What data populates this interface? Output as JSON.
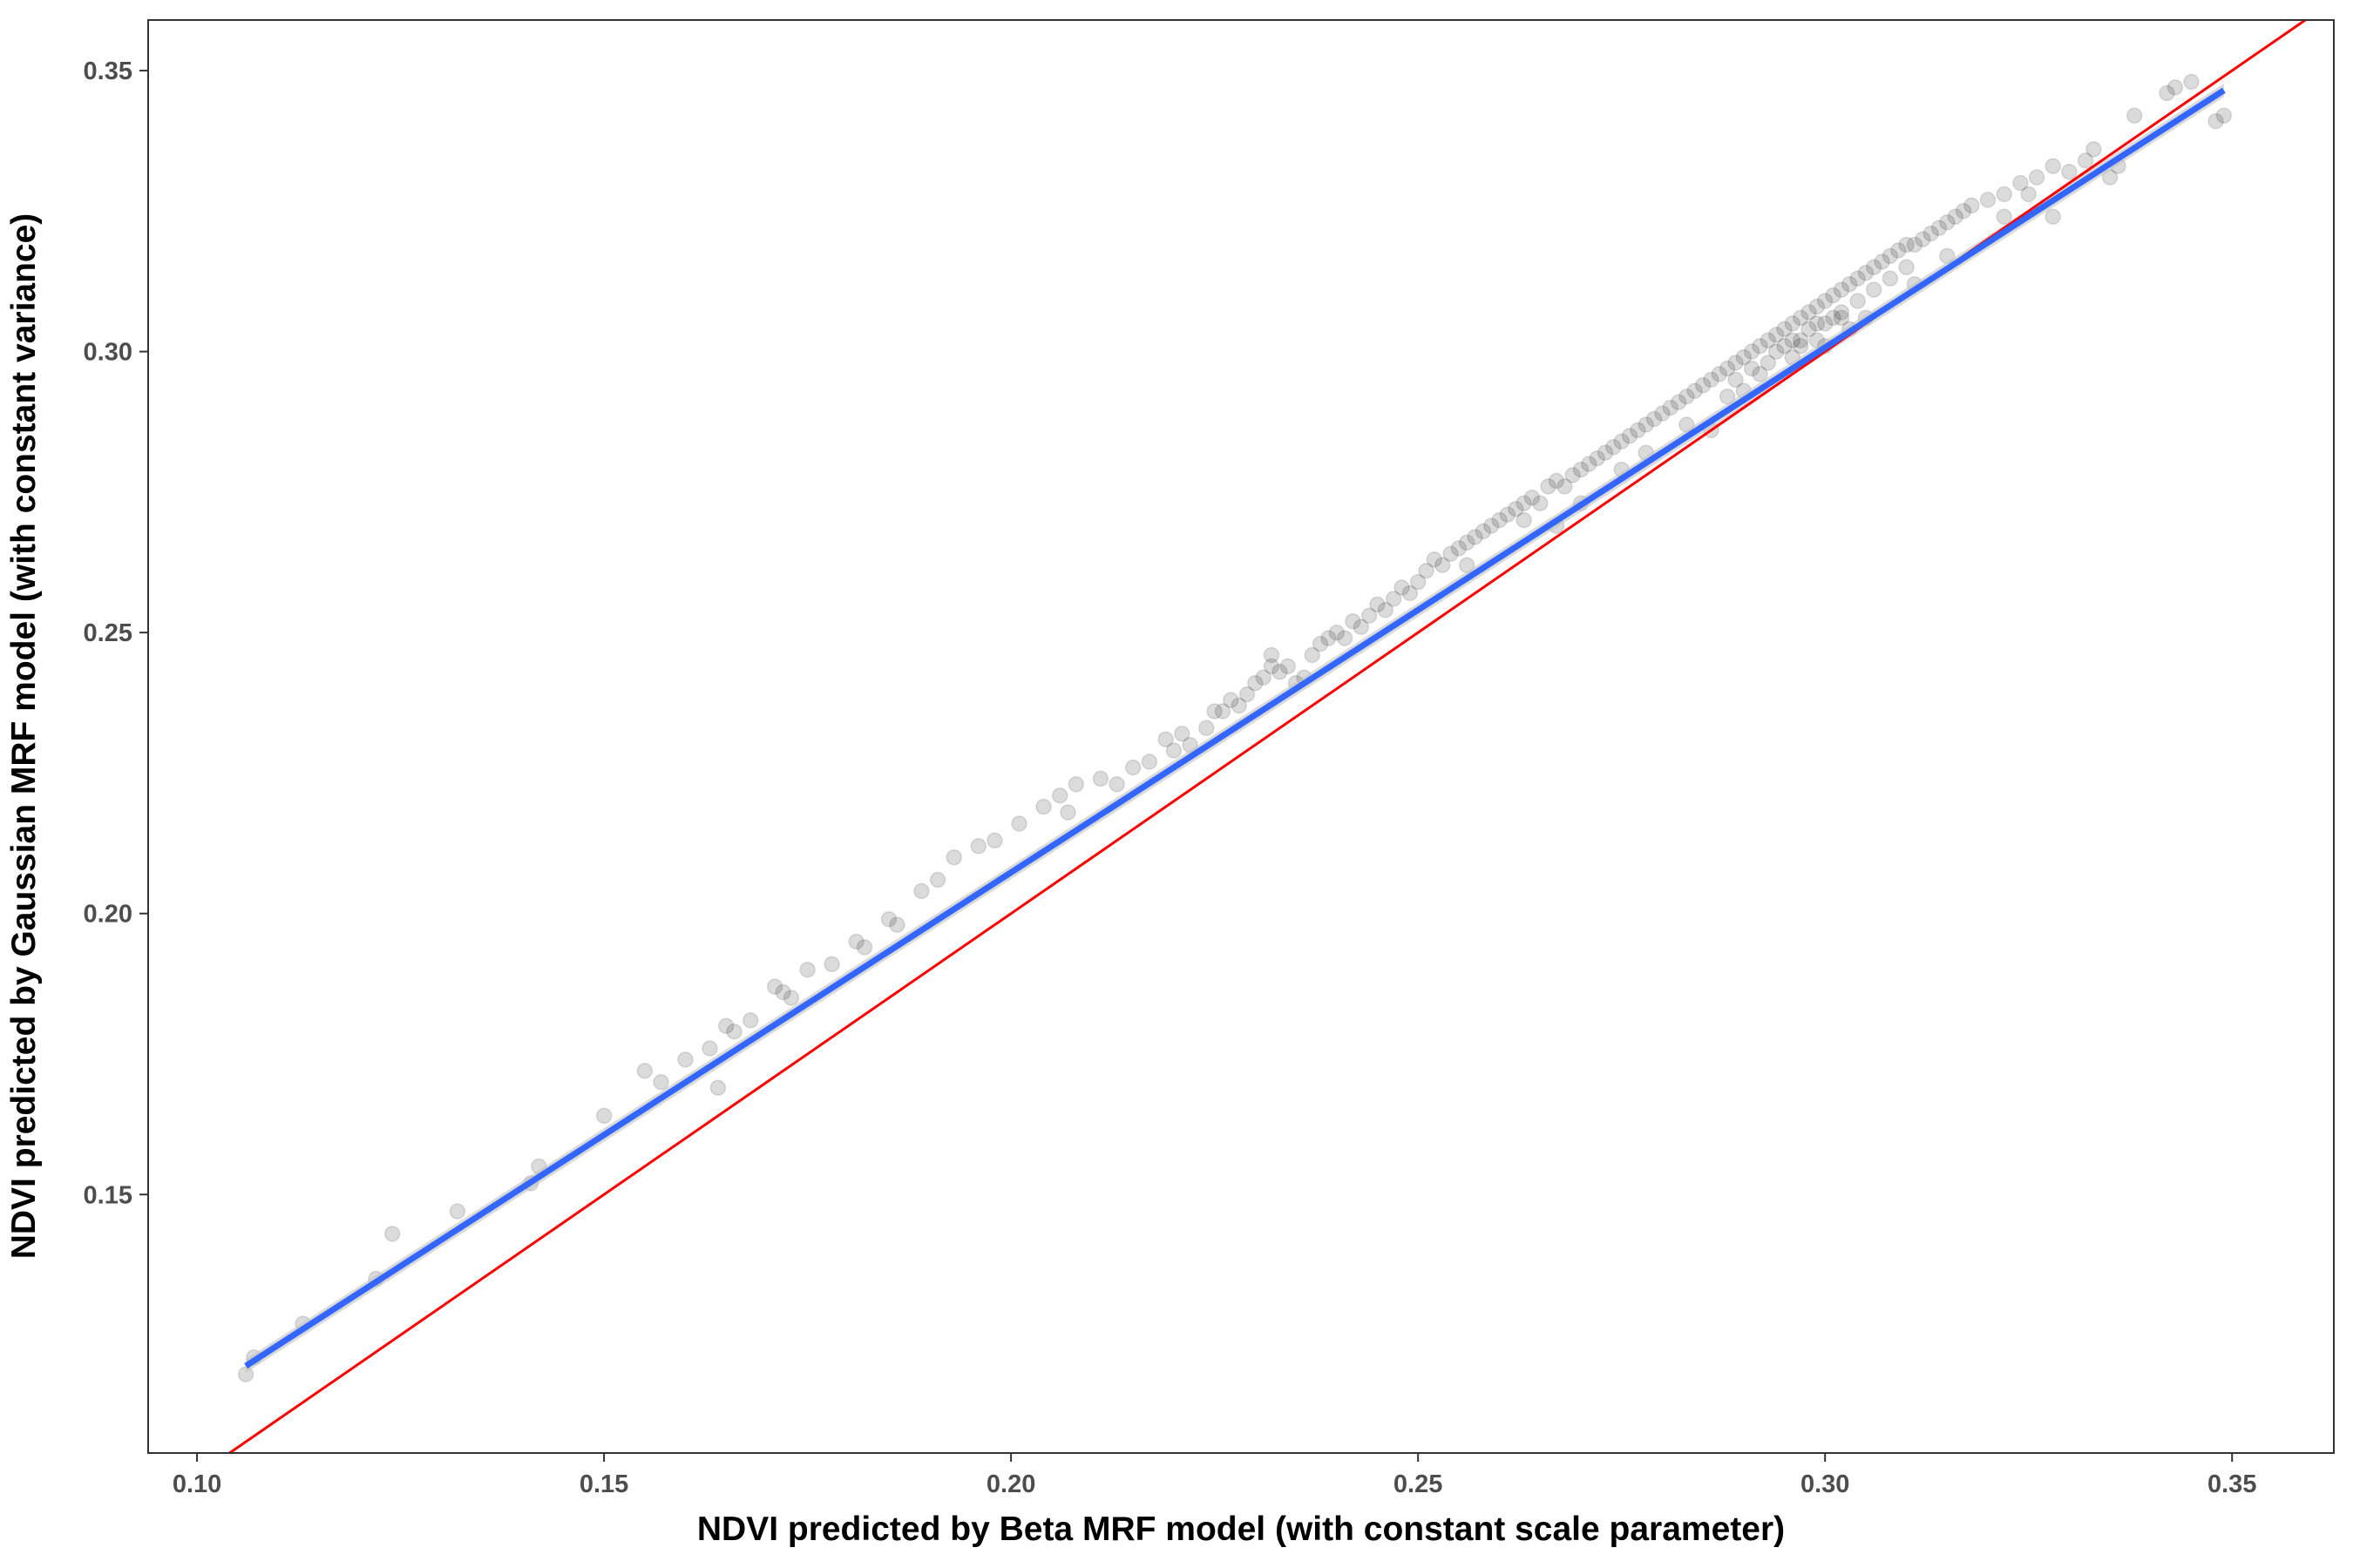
{
  "chart_data": {
    "type": "scatter",
    "title": "",
    "xlabel": "NDVI predicted by Beta MRF model (with constant scale parameter)",
    "ylabel": "NDVI predicted by Gaussian MRF model (with constant variance)",
    "xlim": [
      0.094,
      0.3625
    ],
    "ylim": [
      0.104,
      0.359
    ],
    "x_ticks": [
      0.1,
      0.15,
      0.2,
      0.25,
      0.3,
      0.35
    ],
    "x_tick_labels": [
      "0.10",
      "0.15",
      "0.20",
      "0.25",
      "0.30",
      "0.35"
    ],
    "y_ticks": [
      0.15,
      0.2,
      0.25,
      0.3,
      0.35
    ],
    "y_tick_labels": [
      "0.15",
      "0.20",
      "0.25",
      "0.30",
      "0.35"
    ],
    "grid": false,
    "legend": "none",
    "colors": {
      "points": "#000000",
      "smooth_line": "#3366ff",
      "smooth_band": "#bfbfbf",
      "identity_line": "#ff0000",
      "panel_border": "#333333"
    },
    "series": [
      {
        "type": "scatter",
        "values": [
          [
            0.106,
            0.118
          ],
          [
            0.107,
            0.121
          ],
          [
            0.113,
            0.127
          ],
          [
            0.122,
            0.135
          ],
          [
            0.124,
            0.143
          ],
          [
            0.132,
            0.147
          ],
          [
            0.141,
            0.152
          ],
          [
            0.142,
            0.155
          ],
          [
            0.15,
            0.164
          ],
          [
            0.155,
            0.172
          ],
          [
            0.157,
            0.17
          ],
          [
            0.16,
            0.174
          ],
          [
            0.163,
            0.176
          ],
          [
            0.164,
            0.169
          ],
          [
            0.165,
            0.18
          ],
          [
            0.166,
            0.179
          ],
          [
            0.168,
            0.181
          ],
          [
            0.171,
            0.187
          ],
          [
            0.172,
            0.186
          ],
          [
            0.173,
            0.185
          ],
          [
            0.175,
            0.19
          ],
          [
            0.178,
            0.191
          ],
          [
            0.181,
            0.195
          ],
          [
            0.182,
            0.194
          ],
          [
            0.185,
            0.199
          ],
          [
            0.186,
            0.198
          ],
          [
            0.189,
            0.204
          ],
          [
            0.191,
            0.206
          ],
          [
            0.193,
            0.21
          ],
          [
            0.196,
            0.212
          ],
          [
            0.198,
            0.213
          ],
          [
            0.201,
            0.216
          ],
          [
            0.204,
            0.219
          ],
          [
            0.206,
            0.221
          ],
          [
            0.207,
            0.218
          ],
          [
            0.208,
            0.223
          ],
          [
            0.211,
            0.224
          ],
          [
            0.213,
            0.223
          ],
          [
            0.215,
            0.226
          ],
          [
            0.217,
            0.227
          ],
          [
            0.219,
            0.231
          ],
          [
            0.22,
            0.229
          ],
          [
            0.221,
            0.232
          ],
          [
            0.222,
            0.23
          ],
          [
            0.224,
            0.233
          ],
          [
            0.225,
            0.236
          ],
          [
            0.226,
            0.236
          ],
          [
            0.227,
            0.238
          ],
          [
            0.228,
            0.237
          ],
          [
            0.229,
            0.239
          ],
          [
            0.23,
            0.241
          ],
          [
            0.231,
            0.242
          ],
          [
            0.232,
            0.244
          ],
          [
            0.232,
            0.246
          ],
          [
            0.233,
            0.243
          ],
          [
            0.234,
            0.244
          ],
          [
            0.235,
            0.241
          ],
          [
            0.236,
            0.242
          ],
          [
            0.237,
            0.246
          ],
          [
            0.238,
            0.248
          ],
          [
            0.239,
            0.249
          ],
          [
            0.24,
            0.25
          ],
          [
            0.241,
            0.249
          ],
          [
            0.242,
            0.252
          ],
          [
            0.243,
            0.251
          ],
          [
            0.244,
            0.253
          ],
          [
            0.245,
            0.255
          ],
          [
            0.246,
            0.254
          ],
          [
            0.247,
            0.256
          ],
          [
            0.248,
            0.258
          ],
          [
            0.249,
            0.257
          ],
          [
            0.25,
            0.259
          ],
          [
            0.251,
            0.261
          ],
          [
            0.252,
            0.263
          ],
          [
            0.253,
            0.262
          ],
          [
            0.254,
            0.264
          ],
          [
            0.255,
            0.265
          ],
          [
            0.256,
            0.266
          ],
          [
            0.257,
            0.267
          ],
          [
            0.258,
            0.268
          ],
          [
            0.259,
            0.269
          ],
          [
            0.26,
            0.27
          ],
          [
            0.261,
            0.271
          ],
          [
            0.262,
            0.272
          ],
          [
            0.263,
            0.273
          ],
          [
            0.264,
            0.274
          ],
          [
            0.265,
            0.273
          ],
          [
            0.266,
            0.276
          ],
          [
            0.267,
            0.277
          ],
          [
            0.268,
            0.276
          ],
          [
            0.269,
            0.278
          ],
          [
            0.27,
            0.279
          ],
          [
            0.271,
            0.28
          ],
          [
            0.272,
            0.281
          ],
          [
            0.273,
            0.282
          ],
          [
            0.274,
            0.283
          ],
          [
            0.275,
            0.284
          ],
          [
            0.276,
            0.285
          ],
          [
            0.277,
            0.286
          ],
          [
            0.278,
            0.287
          ],
          [
            0.279,
            0.288
          ],
          [
            0.28,
            0.289
          ],
          [
            0.281,
            0.29
          ],
          [
            0.282,
            0.291
          ],
          [
            0.283,
            0.292
          ],
          [
            0.284,
            0.293
          ],
          [
            0.285,
            0.294
          ],
          [
            0.286,
            0.295
          ],
          [
            0.287,
            0.296
          ],
          [
            0.288,
            0.297
          ],
          [
            0.289,
            0.298
          ],
          [
            0.29,
            0.299
          ],
          [
            0.291,
            0.3
          ],
          [
            0.292,
            0.301
          ],
          [
            0.293,
            0.302
          ],
          [
            0.294,
            0.303
          ],
          [
            0.295,
            0.304
          ],
          [
            0.296,
            0.305
          ],
          [
            0.297,
            0.306
          ],
          [
            0.298,
            0.307
          ],
          [
            0.299,
            0.308
          ],
          [
            0.3,
            0.309
          ],
          [
            0.301,
            0.31
          ],
          [
            0.302,
            0.311
          ],
          [
            0.303,
            0.312
          ],
          [
            0.304,
            0.313
          ],
          [
            0.305,
            0.314
          ],
          [
            0.306,
            0.315
          ],
          [
            0.307,
            0.316
          ],
          [
            0.308,
            0.317
          ],
          [
            0.309,
            0.318
          ],
          [
            0.31,
            0.319
          ],
          [
            0.311,
            0.319
          ],
          [
            0.312,
            0.32
          ],
          [
            0.313,
            0.321
          ],
          [
            0.314,
            0.322
          ],
          [
            0.315,
            0.323
          ],
          [
            0.316,
            0.324
          ],
          [
            0.317,
            0.325
          ],
          [
            0.318,
            0.326
          ],
          [
            0.32,
            0.327
          ],
          [
            0.322,
            0.328
          ],
          [
            0.324,
            0.33
          ],
          [
            0.326,
            0.331
          ],
          [
            0.328,
            0.333
          ],
          [
            0.33,
            0.332
          ],
          [
            0.332,
            0.334
          ],
          [
            0.333,
            0.336
          ],
          [
            0.335,
            0.331
          ],
          [
            0.336,
            0.333
          ],
          [
            0.338,
            0.342
          ],
          [
            0.342,
            0.346
          ],
          [
            0.343,
            0.347
          ],
          [
            0.345,
            0.348
          ],
          [
            0.348,
            0.341
          ],
          [
            0.349,
            0.342
          ],
          [
            0.286,
            0.286
          ],
          [
            0.29,
            0.293
          ],
          [
            0.296,
            0.299
          ],
          [
            0.3,
            0.301
          ],
          [
            0.303,
            0.304
          ],
          [
            0.305,
            0.306
          ],
          [
            0.311,
            0.312
          ],
          [
            0.315,
            0.317
          ],
          [
            0.322,
            0.324
          ],
          [
            0.325,
            0.328
          ],
          [
            0.328,
            0.324
          ],
          [
            0.267,
            0.269
          ],
          [
            0.263,
            0.27
          ],
          [
            0.256,
            0.262
          ],
          [
            0.27,
            0.273
          ],
          [
            0.275,
            0.279
          ],
          [
            0.278,
            0.282
          ],
          [
            0.283,
            0.287
          ],
          [
            0.288,
            0.292
          ],
          [
            0.292,
            0.296
          ],
          [
            0.295,
            0.301
          ],
          [
            0.297,
            0.302
          ],
          [
            0.299,
            0.305
          ],
          [
            0.301,
            0.306
          ],
          [
            0.302,
            0.307
          ],
          [
            0.304,
            0.309
          ],
          [
            0.306,
            0.311
          ],
          [
            0.308,
            0.313
          ],
          [
            0.31,
            0.315
          ],
          [
            0.289,
            0.295
          ],
          [
            0.291,
            0.297
          ],
          [
            0.293,
            0.298
          ],
          [
            0.294,
            0.3
          ],
          [
            0.296,
            0.302
          ],
          [
            0.298,
            0.304
          ],
          [
            0.3,
            0.305
          ],
          [
            0.302,
            0.306
          ],
          [
            0.297,
            0.301
          ],
          [
            0.299,
            0.302
          ]
        ]
      },
      {
        "type": "line",
        "x": [
          0.106,
          0.349
        ],
        "y": [
          0.1195,
          0.3465
        ]
      },
      {
        "type": "line",
        "x": [
          0.094,
          0.3625
        ],
        "y": [
          0.094,
          0.3625
        ]
      }
    ]
  }
}
